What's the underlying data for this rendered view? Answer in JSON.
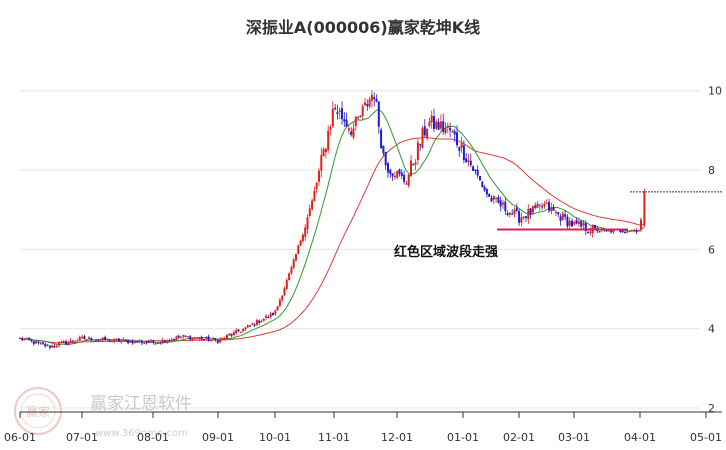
{
  "watermark": {
    "name": "赢家江恩软件",
    "url": "www.369nmn.com",
    "seal": "赢家"
  },
  "chart_data": {
    "type": "candlestick",
    "title": "深振业A(000006)赢家乾坤K线",
    "y_ticks": [
      2,
      4,
      6,
      8,
      10
    ],
    "ylim": [
      2,
      10.9
    ],
    "x_ticks": [
      "06-01",
      "07-01",
      "08-01",
      "09-01",
      "10-01",
      "11-01",
      "12-01",
      "01-01",
      "02-01",
      "03-01",
      "04-01",
      "05-01"
    ],
    "grid": true,
    "annotation": "红色区域波段走强",
    "last_close": 7.45,
    "colors": {
      "up": "#e0201b",
      "down": "#1d1fd0",
      "ma_short": "#2f9a2f",
      "ma_long": "#e03a3a",
      "flat": "#d82050"
    },
    "series": [
      {
        "name": "close",
        "points": [
          [
            "06-01",
            3.75
          ],
          [
            "06-15",
            3.55
          ],
          [
            "07-01",
            3.75
          ],
          [
            "07-15",
            3.7
          ],
          [
            "08-01",
            3.65
          ],
          [
            "08-15",
            3.8
          ],
          [
            "09-01",
            3.7
          ],
          [
            "09-15",
            4.0
          ],
          [
            "10-01",
            4.4
          ],
          [
            "10-10",
            5.6
          ],
          [
            "10-20",
            7.2
          ],
          [
            "11-01",
            9.6
          ],
          [
            "11-10",
            9.0
          ],
          [
            "11-20",
            10.0
          ],
          [
            "11-25",
            8.2
          ],
          [
            "12-05",
            7.7
          ],
          [
            "12-15",
            9.2
          ],
          [
            "12-25",
            9.0
          ],
          [
            "01-01",
            8.5
          ],
          [
            "01-15",
            7.3
          ],
          [
            "02-01",
            6.8
          ],
          [
            "02-15",
            7.1
          ],
          [
            "03-01",
            6.6
          ],
          [
            "03-15",
            6.45
          ],
          [
            "04-01",
            6.5
          ],
          [
            "04-03",
            7.45
          ]
        ]
      }
    ]
  }
}
